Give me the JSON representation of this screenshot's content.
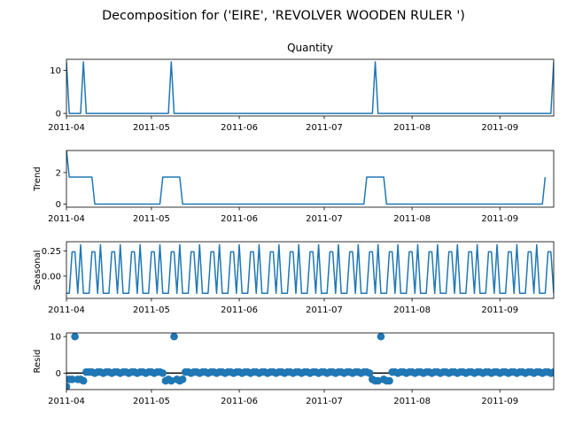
{
  "suptitle": "Decomposition for ('EIRE', 'REVOLVER WOODEN RULER ')",
  "accent_color": "#1f77b4",
  "chart_data": [
    {
      "type": "line",
      "title": "Quantity",
      "ylabel": "",
      "xlim": [
        "2011-04-01",
        "2011-09-20"
      ],
      "ylim": [
        -0.6,
        12.6
      ],
      "yticks": [
        0,
        10
      ],
      "xticks": [
        "2011-04",
        "2011-05",
        "2011-06",
        "2011-07",
        "2011-08",
        "2011-09"
      ],
      "series": [
        {
          "x": [
            "2011-04-01",
            "2011-04-02",
            "2011-04-03",
            "2011-04-04",
            "2011-04-05",
            "2011-04-06",
            "2011-04-07",
            "2011-04-08",
            "2011-04-10",
            "2011-05-05",
            "2011-05-06",
            "2011-05-07",
            "2011-05-08",
            "2011-05-09",
            "2011-07-18",
            "2011-07-19",
            "2011-07-20",
            "2011-09-19",
            "2011-09-20"
          ],
          "values": [
            12,
            0,
            0,
            0,
            0,
            0,
            12,
            0,
            0,
            0,
            0,
            0,
            12,
            0,
            0,
            12,
            0,
            0,
            12
          ]
        }
      ]
    },
    {
      "type": "line",
      "title": "",
      "ylabel": "Trend",
      "xlim": [
        "2011-04-01",
        "2011-09-20"
      ],
      "ylim": [
        -0.2,
        3.4
      ],
      "yticks": [
        0,
        2
      ],
      "xticks": [
        "2011-04",
        "2011-05",
        "2011-06",
        "2011-07",
        "2011-08",
        "2011-09"
      ],
      "series": [
        {
          "x": [
            "2011-04-01",
            "2011-04-02",
            "2011-04-03",
            "2011-04-04",
            "2011-04-05",
            "2011-04-06",
            "2011-04-07",
            "2011-04-08",
            "2011-04-09",
            "2011-04-10",
            "2011-04-11",
            "2011-05-04",
            "2011-05-05",
            "2011-05-06",
            "2011-05-07",
            "2011-05-08",
            "2011-05-09",
            "2011-05-10",
            "2011-05-11",
            "2011-05-12",
            "2011-07-15",
            "2011-07-16",
            "2011-07-17",
            "2011-07-18",
            "2011-07-19",
            "2011-07-20",
            "2011-07-21",
            "2011-07-22",
            "2011-07-23",
            "2011-09-16",
            "2011-09-17"
          ],
          "values": [
            3.43,
            1.71,
            1.71,
            1.71,
            1.71,
            1.71,
            1.71,
            1.71,
            1.71,
            1.71,
            0,
            0,
            1.71,
            1.71,
            1.71,
            1.71,
            1.71,
            1.71,
            1.71,
            0,
            0,
            1.71,
            1.71,
            1.71,
            1.71,
            1.71,
            1.71,
            1.71,
            0,
            0,
            1.71
          ]
        }
      ]
    },
    {
      "type": "line",
      "title": "",
      "ylabel": "Seasonal",
      "xlim": [
        "2011-04-01",
        "2011-09-20"
      ],
      "ylim": [
        -0.22,
        0.34
      ],
      "yticks": [
        0.25,
        0.0
      ],
      "ytick_labels": [
        "0.25",
        "0.00"
      ],
      "xticks": [
        "2011-04",
        "2011-05",
        "2011-06",
        "2011-07",
        "2011-08",
        "2011-09"
      ],
      "period": 7,
      "pattern": [
        -0.17,
        -0.17,
        0.24,
        0.24,
        -0.17,
        0.31,
        -0.17
      ],
      "start": "2011-04-01",
      "end": "2011-09-20"
    },
    {
      "type": "scatter",
      "title": "",
      "ylabel": "Resid",
      "xlim": [
        "2011-04-01",
        "2011-09-20"
      ],
      "ylim": [
        -4.5,
        11.0
      ],
      "yticks": [
        0,
        10
      ],
      "xticks": [
        "2011-04",
        "2011-05",
        "2011-06",
        "2011-07",
        "2011-08",
        "2011-09"
      ],
      "baseline": 0,
      "start": "2011-04-01",
      "values": [
        -3.7,
        -1.7,
        -1.7,
        10.0,
        -1.7,
        -1.7,
        -2.1,
        0.3,
        0.3,
        0.3,
        0.0,
        0.3,
        0.3,
        0.0,
        0.3,
        0.3,
        0.0,
        0.3,
        0.3,
        0.0,
        0.3,
        0.3,
        0.0,
        0.3,
        0.3,
        0.0,
        0.3,
        0.3,
        0.0,
        0.3,
        0.3,
        0.0,
        0.3,
        0.3,
        0.0,
        -2.1,
        -1.7,
        -2.1,
        10.0,
        -1.7,
        -2.1,
        -1.7,
        0.3,
        0.3,
        0.0,
        0.3,
        0.3,
        0.0,
        0.3,
        0.3,
        0.0,
        0.3,
        0.3,
        0.0,
        0.3,
        0.3,
        0.0,
        0.3,
        0.3,
        0.0,
        0.3,
        0.3,
        0.0,
        0.3,
        0.3,
        0.0,
        0.3,
        0.3,
        0.0,
        0.3,
        0.3,
        0.0,
        0.3,
        0.3,
        0.0,
        0.3,
        0.3,
        0.0,
        0.3,
        0.3,
        0.0,
        0.3,
        0.3,
        0.0,
        0.3,
        0.3,
        0.0,
        0.3,
        0.3,
        0.0,
        0.3,
        0.3,
        0.0,
        0.3,
        0.3,
        0.0,
        0.3,
        0.3,
        0.0,
        0.3,
        0.3,
        0.0,
        0.3,
        0.3,
        0.0,
        0.3,
        0.3,
        0.0,
        -1.7,
        -2.1,
        -2.1,
        10.0,
        -1.7,
        -2.1,
        -2.1,
        0.3,
        0.3,
        0.0,
        0.3,
        0.3,
        0.0,
        0.3,
        0.3,
        0.0,
        0.3,
        0.3,
        0.0,
        0.3,
        0.3,
        0.0,
        0.3,
        0.3,
        0.0,
        0.3,
        0.3,
        0.0,
        0.3,
        0.3,
        0.0,
        0.3,
        0.3,
        0.0,
        0.3,
        0.3,
        0.0,
        0.3,
        0.3,
        0.0,
        0.3,
        0.3,
        0.0,
        0.3,
        0.3,
        0.0,
        0.3,
        0.3,
        0.0,
        0.3,
        0.3,
        0.0,
        0.3,
        0.3,
        0.0,
        0.3,
        0.3,
        0.0,
        0.3,
        0.3,
        0.0,
        0.3,
        0.3,
        0.0,
        0.3,
        0.3,
        0.0,
        0.3,
        -2.1
      ]
    }
  ]
}
